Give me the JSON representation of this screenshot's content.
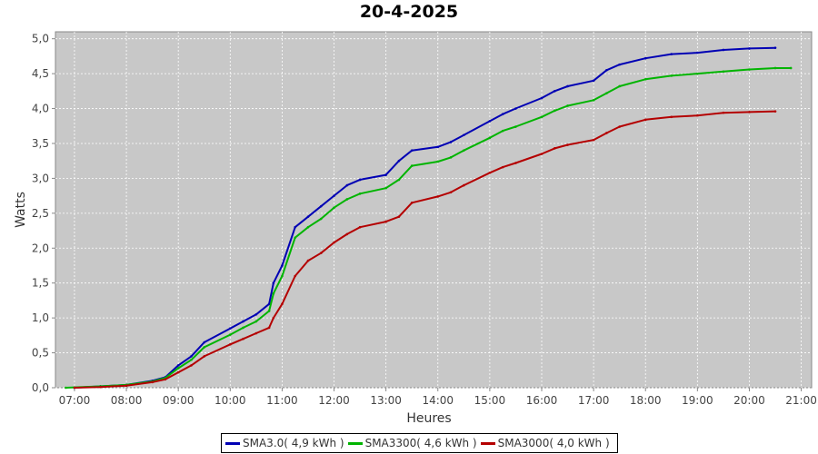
{
  "chart_data": {
    "type": "line",
    "title": "20-4-2025",
    "xlabel": "Heures",
    "ylabel": "Watts",
    "x_ticks": [
      "07:00",
      "08:00",
      "09:00",
      "10:00",
      "11:00",
      "12:00",
      "13:00",
      "14:00",
      "15:00",
      "16:00",
      "17:00",
      "18:00",
      "19:00",
      "20:00",
      "21:00"
    ],
    "y_ticks": [
      "0,0",
      "0,5",
      "1,0",
      "1,5",
      "2,0",
      "2,5",
      "3,0",
      "3,5",
      "4,0",
      "4,5",
      "5,0"
    ],
    "xlim": [
      "06:38",
      "21:12"
    ],
    "ylim": [
      0,
      5.1
    ],
    "grid": true,
    "legend_position": "bottom",
    "series": [
      {
        "name": "SMA3.0( 4,9 kWh )",
        "color": "#0000b4",
        "points": [
          [
            "07:00",
            0.0
          ],
          [
            "07:30",
            0.02
          ],
          [
            "08:00",
            0.04
          ],
          [
            "08:30",
            0.1
          ],
          [
            "08:45",
            0.15
          ],
          [
            "09:00",
            0.32
          ],
          [
            "09:15",
            0.45
          ],
          [
            "09:30",
            0.65
          ],
          [
            "10:00",
            0.85
          ],
          [
            "10:15",
            0.95
          ],
          [
            "10:30",
            1.05
          ],
          [
            "10:45",
            1.2
          ],
          [
            "10:50",
            1.5
          ],
          [
            "11:00",
            1.75
          ],
          [
            "11:15",
            2.3
          ],
          [
            "11:30",
            2.45
          ],
          [
            "11:45",
            2.6
          ],
          [
            "12:00",
            2.75
          ],
          [
            "12:15",
            2.9
          ],
          [
            "12:30",
            2.98
          ],
          [
            "13:00",
            3.05
          ],
          [
            "13:15",
            3.25
          ],
          [
            "13:30",
            3.4
          ],
          [
            "14:00",
            3.45
          ],
          [
            "14:15",
            3.52
          ],
          [
            "14:30",
            3.62
          ],
          [
            "15:00",
            3.82
          ],
          [
            "15:15",
            3.92
          ],
          [
            "15:30",
            4.0
          ],
          [
            "16:00",
            4.15
          ],
          [
            "16:15",
            4.25
          ],
          [
            "16:30",
            4.32
          ],
          [
            "17:00",
            4.4
          ],
          [
            "17:15",
            4.55
          ],
          [
            "17:30",
            4.63
          ],
          [
            "18:00",
            4.72
          ],
          [
            "18:30",
            4.78
          ],
          [
            "19:00",
            4.8
          ],
          [
            "19:30",
            4.84
          ],
          [
            "20:00",
            4.86
          ],
          [
            "20:30",
            4.87
          ]
        ]
      },
      {
        "name": "SMA3300( 4,6 kWh )",
        "color": "#00b400",
        "points": [
          [
            "06:50",
            0.0
          ],
          [
            "07:30",
            0.02
          ],
          [
            "08:00",
            0.04
          ],
          [
            "08:30",
            0.09
          ],
          [
            "08:45",
            0.14
          ],
          [
            "09:00",
            0.28
          ],
          [
            "09:15",
            0.4
          ],
          [
            "09:30",
            0.58
          ],
          [
            "10:00",
            0.76
          ],
          [
            "10:15",
            0.86
          ],
          [
            "10:30",
            0.95
          ],
          [
            "10:45",
            1.1
          ],
          [
            "10:50",
            1.35
          ],
          [
            "11:00",
            1.6
          ],
          [
            "11:15",
            2.15
          ],
          [
            "11:30",
            2.3
          ],
          [
            "11:45",
            2.42
          ],
          [
            "12:00",
            2.58
          ],
          [
            "12:15",
            2.7
          ],
          [
            "12:30",
            2.78
          ],
          [
            "13:00",
            2.86
          ],
          [
            "13:15",
            2.98
          ],
          [
            "13:30",
            3.18
          ],
          [
            "14:00",
            3.24
          ],
          [
            "14:15",
            3.3
          ],
          [
            "14:30",
            3.4
          ],
          [
            "15:00",
            3.58
          ],
          [
            "15:15",
            3.68
          ],
          [
            "15:30",
            3.74
          ],
          [
            "16:00",
            3.88
          ],
          [
            "16:15",
            3.97
          ],
          [
            "16:30",
            4.04
          ],
          [
            "17:00",
            4.12
          ],
          [
            "17:15",
            4.22
          ],
          [
            "17:30",
            4.32
          ],
          [
            "18:00",
            4.42
          ],
          [
            "18:30",
            4.47
          ],
          [
            "19:00",
            4.5
          ],
          [
            "19:30",
            4.53
          ],
          [
            "20:00",
            4.56
          ],
          [
            "20:30",
            4.58
          ],
          [
            "20:48",
            4.58
          ]
        ]
      },
      {
        "name": "SMA3000( 4,0 kWh )",
        "color": "#b40000",
        "points": [
          [
            "07:00",
            0.0
          ],
          [
            "07:30",
            0.01
          ],
          [
            "08:00",
            0.03
          ],
          [
            "08:30",
            0.08
          ],
          [
            "08:45",
            0.12
          ],
          [
            "09:00",
            0.22
          ],
          [
            "09:15",
            0.32
          ],
          [
            "09:30",
            0.45
          ],
          [
            "10:00",
            0.62
          ],
          [
            "10:15",
            0.7
          ],
          [
            "10:30",
            0.78
          ],
          [
            "10:45",
            0.86
          ],
          [
            "10:50",
            1.0
          ],
          [
            "11:00",
            1.2
          ],
          [
            "11:15",
            1.6
          ],
          [
            "11:30",
            1.82
          ],
          [
            "11:45",
            1.93
          ],
          [
            "12:00",
            2.08
          ],
          [
            "12:15",
            2.2
          ],
          [
            "12:30",
            2.3
          ],
          [
            "13:00",
            2.38
          ],
          [
            "13:15",
            2.45
          ],
          [
            "13:30",
            2.65
          ],
          [
            "14:00",
            2.74
          ],
          [
            "14:15",
            2.8
          ],
          [
            "14:30",
            2.9
          ],
          [
            "15:00",
            3.08
          ],
          [
            "15:15",
            3.16
          ],
          [
            "15:30",
            3.22
          ],
          [
            "16:00",
            3.35
          ],
          [
            "16:15",
            3.43
          ],
          [
            "16:30",
            3.48
          ],
          [
            "17:00",
            3.55
          ],
          [
            "17:15",
            3.65
          ],
          [
            "17:30",
            3.74
          ],
          [
            "18:00",
            3.84
          ],
          [
            "18:30",
            3.88
          ],
          [
            "19:00",
            3.9
          ],
          [
            "19:30",
            3.94
          ],
          [
            "20:00",
            3.95
          ],
          [
            "20:30",
            3.96
          ]
        ]
      }
    ]
  }
}
